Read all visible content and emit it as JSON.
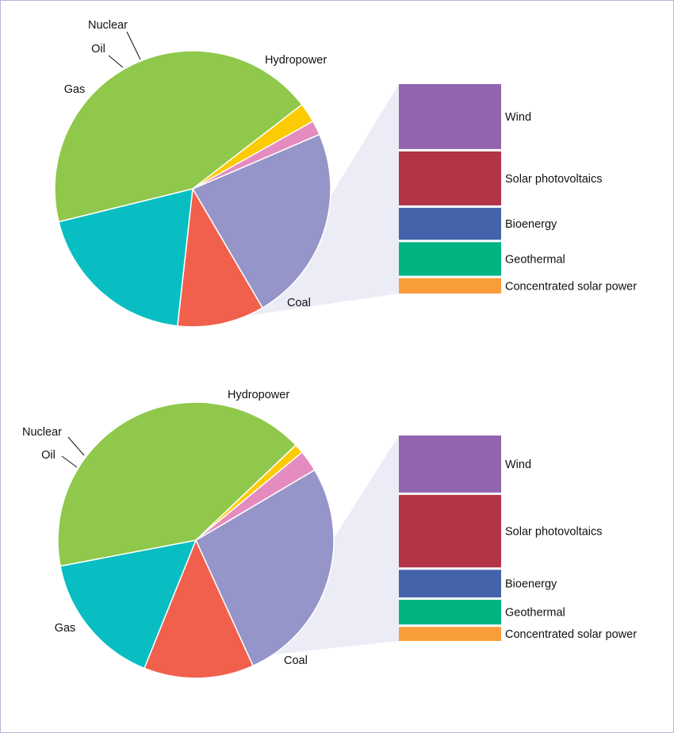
{
  "colors": {
    "Hydropower": "#9595c9",
    "Renewables": "#f1604c",
    "Coal": "#08bec3",
    "Gas": "#8fc84a",
    "Oil": "#fccb04",
    "Nuclear": "#e48cbf",
    "Wind": "#9264ae",
    "Solar photovoltaics": "#b13447",
    "Bioenergy": "#4563aa",
    "Geothermal": "#01b482",
    "Concentrated solar power": "#fa9e3c",
    "zoom_wedge": "#ececf7",
    "frame": "#b9b6dc"
  },
  "chart_data": [
    {
      "type": "pie",
      "title": "",
      "slices": [
        {
          "label": "Hydropower",
          "value": 23.0
        },
        {
          "label": "",
          "value": 10.2
        },
        {
          "label": "Coal",
          "value": 19.4
        },
        {
          "label": "Gas",
          "value": 43.4
        },
        {
          "label": "Oil",
          "value": 2.3
        },
        {
          "label": "Nuclear",
          "value": 1.7
        }
      ],
      "breakdown": {
        "of_slice_index": 1,
        "items": [
          {
            "label": "Wind",
            "value": 32.5
          },
          {
            "label": "Solar photovoltaics",
            "value": 27.0
          },
          {
            "label": "Bioenergy",
            "value": 16.0
          },
          {
            "label": "Geothermal",
            "value": 16.8
          },
          {
            "label": "Concentrated solar power",
            "value": 7.7
          }
        ]
      }
    },
    {
      "type": "pie",
      "title": "",
      "slices": [
        {
          "label": "Hydropower",
          "value": 26.7
        },
        {
          "label": "",
          "value": 12.9
        },
        {
          "label": "Coal",
          "value": 15.9
        },
        {
          "label": "Gas",
          "value": 40.9
        },
        {
          "label": "Oil",
          "value": 1.1
        },
        {
          "label": "Nuclear",
          "value": 2.5
        }
      ],
      "breakdown": {
        "of_slice_index": 1,
        "items": [
          {
            "label": "Wind",
            "value": 29.1
          },
          {
            "label": "Solar photovoltaics",
            "value": 37.0
          },
          {
            "label": "Bioenergy",
            "value": 14.1
          },
          {
            "label": "Geothermal",
            "value": 12.6
          },
          {
            "label": "Concentrated solar power",
            "value": 7.2
          }
        ]
      }
    }
  ]
}
